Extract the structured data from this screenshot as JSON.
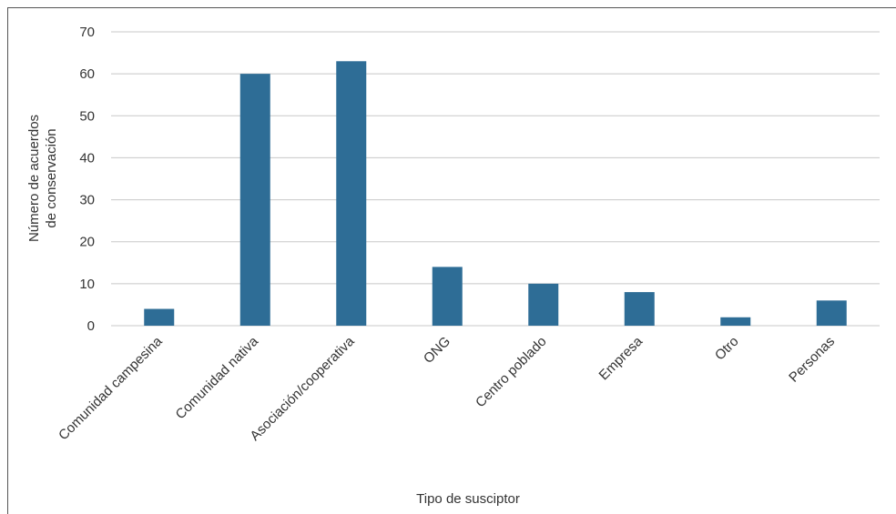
{
  "chart_data": {
    "type": "bar",
    "categories": [
      "Comunidad campesina",
      "Comunidad nativa",
      "Asociación/cooperativa",
      "ONG",
      "Centro poblado",
      "Empresa",
      "Otro",
      "Personas"
    ],
    "values": [
      4,
      60,
      63,
      14,
      10,
      8,
      2,
      6
    ],
    "title": "",
    "xlabel": "Tipo de susciptor",
    "ylabel_lines": [
      "Número de acuerdos",
      "de conservación"
    ],
    "ylim": [
      0,
      70
    ],
    "yticks": [
      0,
      10,
      20,
      30,
      40,
      50,
      60,
      70
    ],
    "grid": true,
    "legend": "none",
    "bar_color": "#2e6d96",
    "grid_color": "#c8c8c8"
  }
}
